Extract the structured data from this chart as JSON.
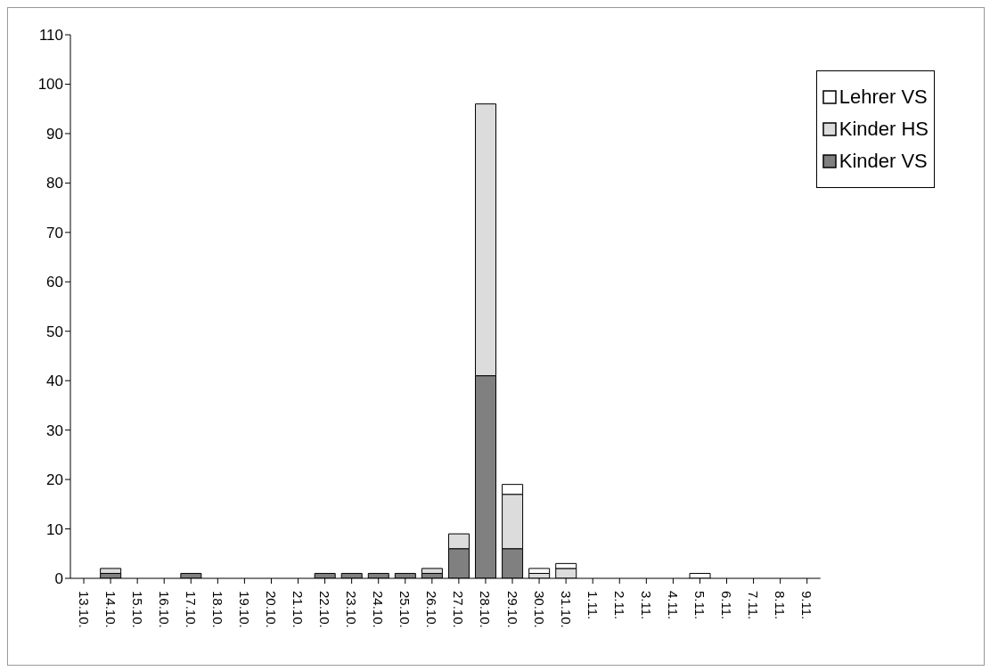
{
  "chart_data": {
    "type": "bar",
    "stacked": true,
    "categories": [
      "13.10.",
      "14.10.",
      "15.10.",
      "16.10.",
      "17.10.",
      "18.10.",
      "19.10.",
      "20.10.",
      "21.10.",
      "22.10.",
      "23.10.",
      "24.10.",
      "25.10.",
      "26.10.",
      "27.10.",
      "28.10.",
      "29.10.",
      "30.10.",
      "31.10.",
      "1.11.",
      "2.11.",
      "3.11.",
      "4.11.",
      "5.11.",
      "6.11.",
      "7.11.",
      "8.11.",
      "9.11."
    ],
    "series": [
      {
        "name": "Kinder VS",
        "color": "#808080",
        "values": [
          0,
          1,
          0,
          0,
          1,
          0,
          0,
          0,
          0,
          1,
          1,
          1,
          1,
          1,
          6,
          41,
          6,
          0,
          0,
          0,
          0,
          0,
          0,
          0,
          0,
          0,
          0,
          0
        ]
      },
      {
        "name": "Kinder HS",
        "color": "#dcdcdc",
        "values": [
          0,
          1,
          0,
          0,
          0,
          0,
          0,
          0,
          0,
          0,
          0,
          0,
          0,
          1,
          3,
          55,
          11,
          1,
          2,
          0,
          0,
          0,
          0,
          0,
          0,
          0,
          0,
          0
        ]
      },
      {
        "name": "Lehrer VS",
        "color": "#ffffff",
        "values": [
          0,
          0,
          0,
          0,
          0,
          0,
          0,
          0,
          0,
          0,
          0,
          0,
          0,
          0,
          0,
          0,
          2,
          1,
          1,
          0,
          0,
          0,
          0,
          1,
          0,
          0,
          0,
          0
        ]
      }
    ],
    "ylim": [
      0,
      110
    ],
    "yticks": [
      0,
      10,
      20,
      30,
      40,
      50,
      60,
      70,
      80,
      90,
      100,
      110
    ],
    "legend": "top right"
  }
}
